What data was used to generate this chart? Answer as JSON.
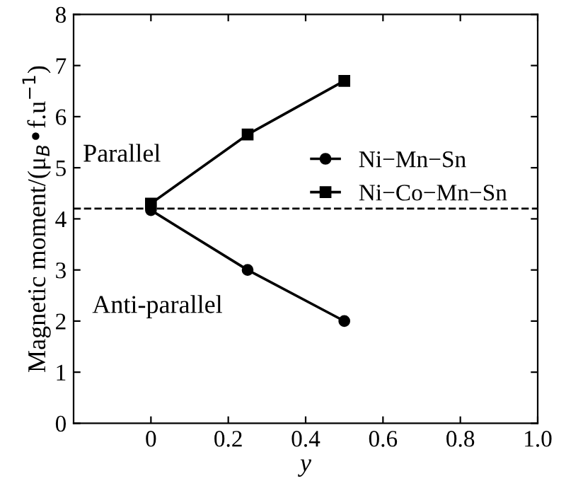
{
  "chart_data": {
    "type": "line",
    "xlabel": "y",
    "ylabel": "Magnetic moment/(μ$_{B}$•f.u$^{−1}$)",
    "series": [
      {
        "name": "Ni−Mn−Sn",
        "color": "#000000",
        "marker": "circle",
        "x": [
          0,
          0.25,
          0.5
        ],
        "values": [
          4.17,
          3.0,
          2.0
        ]
      },
      {
        "name": "Ni−Co−Mn−Sn",
        "color": "#000000",
        "marker": "square",
        "x": [
          0,
          0.25,
          0.5
        ],
        "values": [
          4.3,
          5.65,
          6.7
        ]
      }
    ],
    "xlim": [
      -0.2,
      1.0
    ],
    "xticks": [
      0,
      0.2,
      0.4,
      0.6,
      0.8,
      {
        "value": 1,
        "label": "1.0"
      }
    ],
    "ylim": [
      0,
      8
    ],
    "yticks": [
      0,
      1,
      2,
      3,
      4,
      5,
      6,
      7,
      8
    ],
    "ref_lines": [
      {
        "axis": "y",
        "value": 4.2,
        "line_style": "dashed",
        "color": "#000000"
      }
    ],
    "annotations": [
      "Parallel",
      "Anti-parallel"
    ],
    "legend": "right",
    "grid": false,
    "line_style": "solid"
  }
}
